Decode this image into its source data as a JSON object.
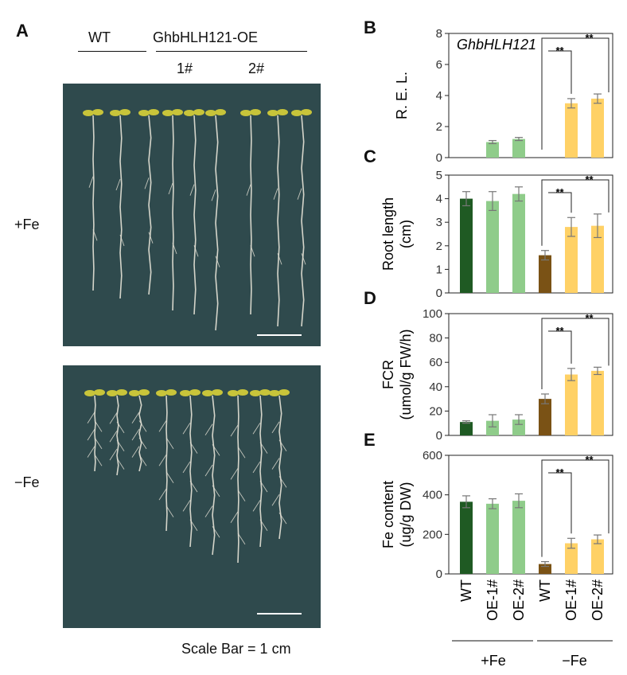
{
  "panels": {
    "A": {
      "letter": "A",
      "header_wt": "WT",
      "header_oe": "GhbHLH121-OE",
      "line_1": "1#",
      "line_2": "2#",
      "cond_fe_plus": "+Fe",
      "cond_fe_minus": "−Fe",
      "scale_note": "Scale Bar = 1 cm",
      "photo_bg": "#2f4a4d",
      "root_color": "#e8e4d8",
      "leaf_color": "#c8c43a"
    },
    "B": {
      "letter": "B"
    },
    "C": {
      "letter": "C"
    },
    "D": {
      "letter": "D"
    },
    "E": {
      "letter": "E"
    }
  },
  "colors": {
    "wt_fe_plus": "#1f5a23",
    "oe_fe_plus": "#8fcc8a",
    "wt_fe_minus": "#7a5215",
    "oe_fe_minus": "#ffd166",
    "error_bar": "#777777"
  },
  "x_axis": {
    "categories": [
      "WT",
      "OE-1#",
      "OE-2#",
      "WT",
      "OE-1#",
      "OE-2#"
    ],
    "group_plus": "+Fe",
    "group_minus": "−Fe"
  },
  "chart_data": [
    {
      "type": "bar",
      "panel": "B",
      "title": "GhbHLH121",
      "ylabel": "R. E. L.",
      "ylim": [
        0,
        8
      ],
      "yticks": [
        "0",
        "2",
        "4",
        "6",
        "8"
      ],
      "categories": [
        "WT",
        "OE-1#",
        "OE-2#",
        "WT",
        "OE-1#",
        "OE-2#"
      ],
      "values": [
        null,
        1.0,
        1.2,
        null,
        3.5,
        3.8
      ],
      "errors": [
        null,
        0.1,
        0.1,
        null,
        0.3,
        0.3
      ],
      "significance": [
        "**",
        "**"
      ]
    },
    {
      "type": "bar",
      "panel": "C",
      "ylabel": "Root length",
      "ylabel2": "(cm)",
      "ylim": [
        0,
        5
      ],
      "yticks": [
        "0",
        "1",
        "2",
        "3",
        "4",
        "5"
      ],
      "categories": [
        "WT",
        "OE-1#",
        "OE-2#",
        "WT",
        "OE-1#",
        "OE-2#"
      ],
      "values": [
        4.0,
        3.9,
        4.2,
        1.6,
        2.8,
        2.85
      ],
      "errors": [
        0.3,
        0.4,
        0.3,
        0.2,
        0.4,
        0.5
      ],
      "significance": [
        "**",
        "**"
      ]
    },
    {
      "type": "bar",
      "panel": "D",
      "ylabel": "FCR",
      "ylabel2": "(umol/g FW/h)",
      "ylim": [
        0,
        100
      ],
      "yticks": [
        "0",
        "20",
        "40",
        "60",
        "80",
        "100"
      ],
      "categories": [
        "WT",
        "OE-1#",
        "OE-2#",
        "WT",
        "OE-1#",
        "OE-2#"
      ],
      "values": [
        11,
        12,
        13,
        30,
        50,
        53
      ],
      "errors": [
        1,
        5,
        4,
        4,
        5,
        3
      ],
      "significance": [
        "**",
        "**"
      ]
    },
    {
      "type": "bar",
      "panel": "E",
      "ylabel": "Fe content",
      "ylabel2": "(ug/g DW)",
      "ylim": [
        0,
        600
      ],
      "yticks": [
        "0",
        "200",
        "400",
        "600"
      ],
      "categories": [
        "WT",
        "OE-1#",
        "OE-2#",
        "WT",
        "OE-1#",
        "OE-2#"
      ],
      "values": [
        365,
        355,
        370,
        50,
        155,
        175
      ],
      "errors": [
        30,
        25,
        35,
        12,
        25,
        22
      ],
      "significance": [
        "**",
        "**"
      ]
    }
  ]
}
